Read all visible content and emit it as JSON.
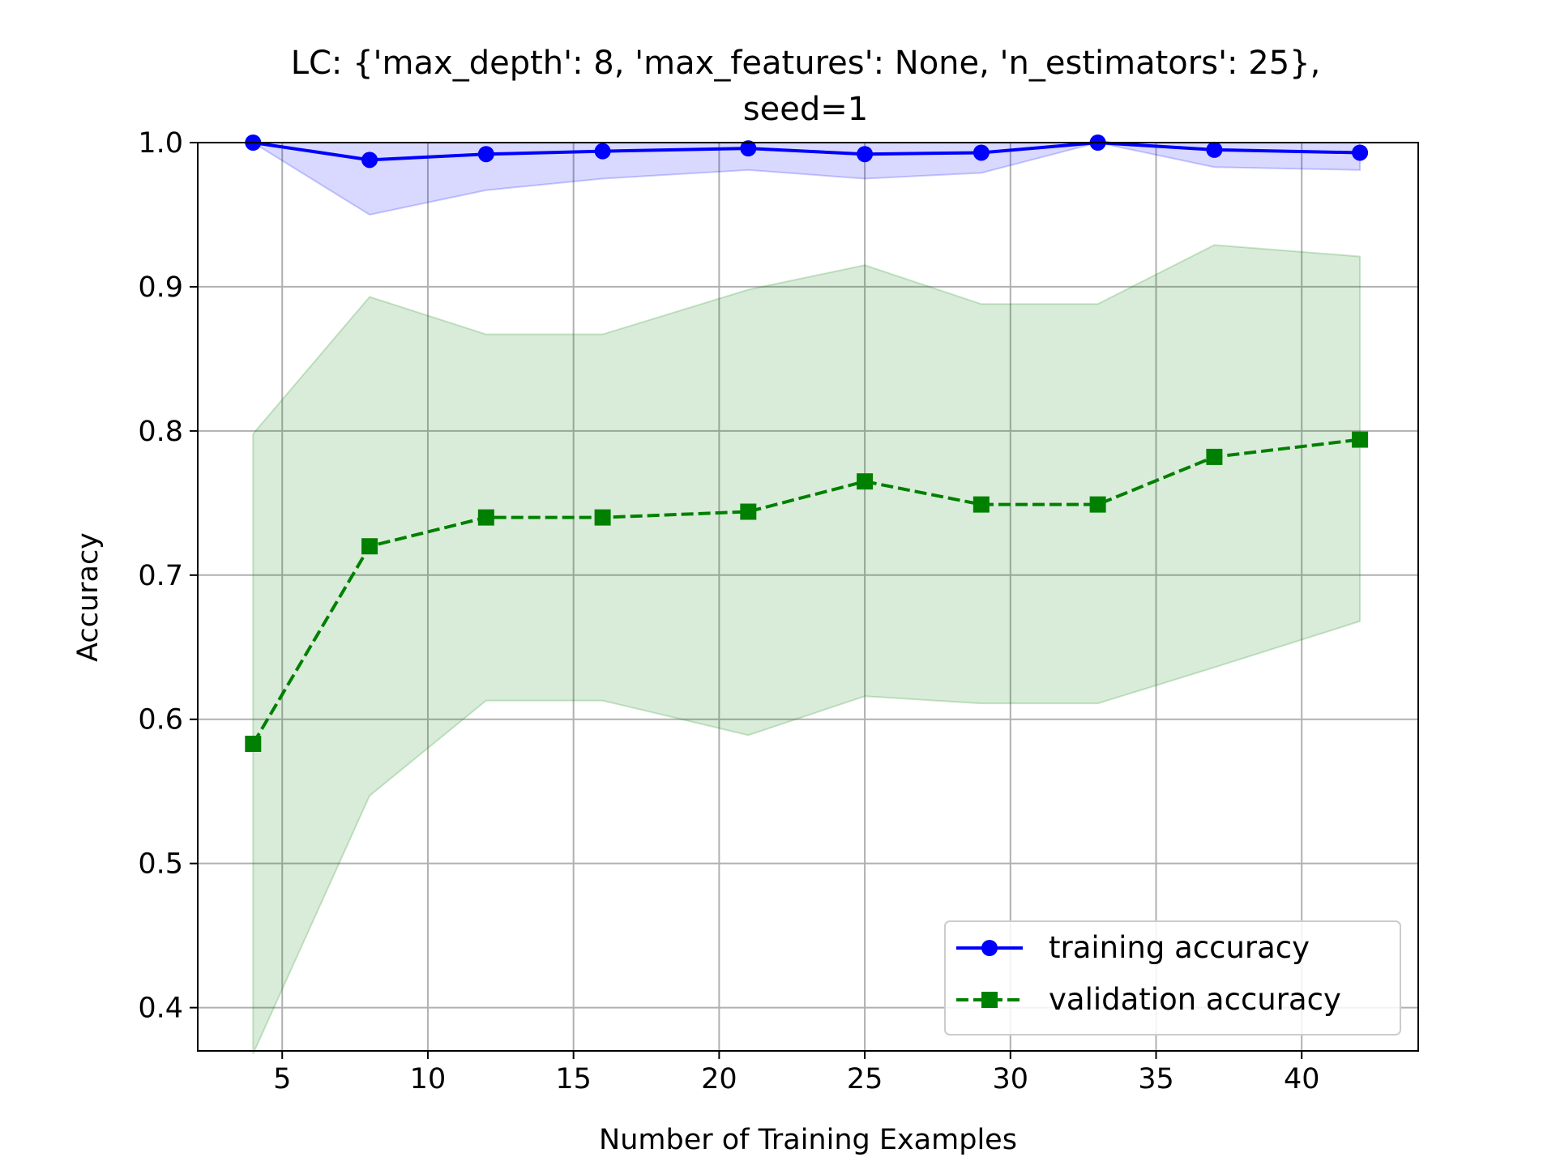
{
  "chart_data": {
    "type": "line",
    "title_line1": "LC: {'max_depth': 8, 'max_features': None, 'n_estimators': 25},",
    "title_line2": "seed=1",
    "xlabel": "Number of Training Examples",
    "ylabel": "Accuracy",
    "xlim": [
      2.1,
      44
    ],
    "ylim": [
      0.37,
      1.0
    ],
    "xticks": [
      5,
      10,
      15,
      20,
      25,
      30,
      35,
      40
    ],
    "xtick_labels": [
      "5",
      "10",
      "15",
      "20",
      "25",
      "30",
      "35",
      "40"
    ],
    "yticks": [
      0.4,
      0.5,
      0.6,
      0.7,
      0.8,
      0.9,
      1.0
    ],
    "ytick_labels": [
      "0.4",
      "0.5",
      "0.6",
      "0.7",
      "0.8",
      "0.9",
      "1.0"
    ],
    "grid": true,
    "legend_position": "lower-right",
    "x": [
      4,
      8,
      12,
      16,
      21,
      25,
      29,
      33,
      37,
      42
    ],
    "series": [
      {
        "name": "training accuracy",
        "color": "#0000ff",
        "marker": "circle",
        "linestyle": "solid",
        "values": [
          1.0,
          0.988,
          0.992,
          0.994,
          0.996,
          0.992,
          0.993,
          1.0,
          0.995,
          0.993
        ],
        "band_lower": [
          1.0,
          0.95,
          0.967,
          0.975,
          0.981,
          0.975,
          0.979,
          1.0,
          0.983,
          0.981
        ],
        "band_upper": [
          1.0,
          1.0,
          1.0,
          1.0,
          1.0,
          1.0,
          1.0,
          1.0,
          1.0,
          1.0
        ],
        "band_fill": "#0000ff"
      },
      {
        "name": "validation accuracy",
        "color": "#008000",
        "marker": "square",
        "linestyle": "dashed",
        "values": [
          0.583,
          0.72,
          0.74,
          0.74,
          0.744,
          0.765,
          0.749,
          0.749,
          0.782,
          0.794
        ],
        "band_lower": [
          0.368,
          0.547,
          0.613,
          0.613,
          0.589,
          0.616,
          0.611,
          0.611,
          0.636,
          0.668
        ],
        "band_upper": [
          0.798,
          0.893,
          0.867,
          0.867,
          0.898,
          0.915,
          0.888,
          0.888,
          0.929,
          0.921
        ],
        "band_fill": "#008000"
      }
    ]
  }
}
